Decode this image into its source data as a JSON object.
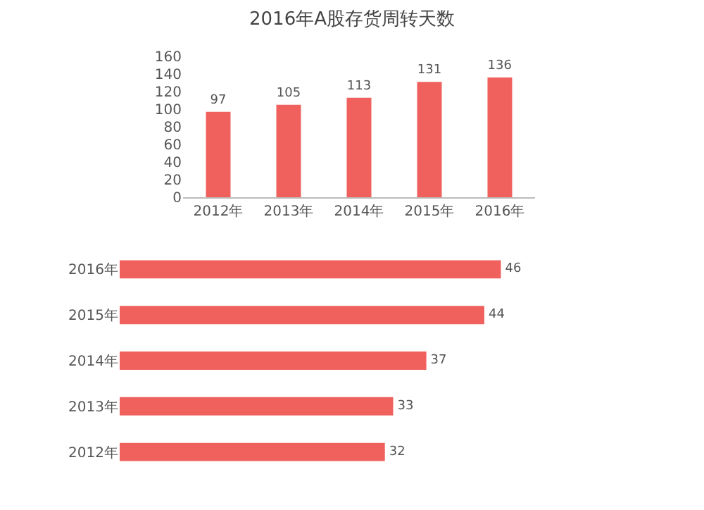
{
  "chart_data": [
    {
      "type": "bar",
      "title": "2016年A股存货周转天数",
      "categories": [
        "2012年",
        "2013年",
        "2014年",
        "2015年",
        "2016年"
      ],
      "values": [
        97,
        105,
        113,
        131,
        136
      ],
      "color": "#f0605c",
      "ylim": [
        0,
        160
      ],
      "yticks": [
        0,
        20,
        40,
        60,
        80,
        100,
        120,
        140,
        160
      ],
      "grid": false,
      "data_labels": true
    },
    {
      "type": "bar",
      "orientation": "horizontal",
      "categories": [
        "2016年",
        "2015年",
        "2014年",
        "2013年",
        "2012年"
      ],
      "values": [
        46,
        44,
        37,
        33,
        32
      ],
      "color": "#f0605c",
      "data_labels": true,
      "tick_labels": "y"
    }
  ]
}
